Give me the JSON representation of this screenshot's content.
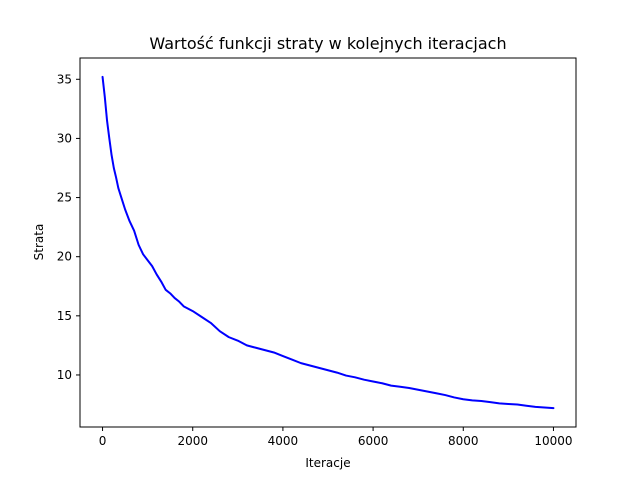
{
  "chart_data": {
    "type": "line",
    "title": "Wartość funkcji straty w kolejnych iteracjach",
    "xlabel": "Iteracje",
    "ylabel": "Strata",
    "xlim": [
      -500,
      10500
    ],
    "ylim": [
      5.6,
      36.8
    ],
    "xticks": [
      0,
      2000,
      4000,
      6000,
      8000,
      10000
    ],
    "yticks": [
      10,
      15,
      20,
      25,
      30,
      35
    ],
    "grid": false,
    "legend": "none",
    "series": [
      {
        "color": "#0000ff",
        "x": [
          0,
          50,
          100,
          150,
          200,
          250,
          300,
          350,
          400,
          450,
          500,
          600,
          700,
          800,
          900,
          1000,
          1100,
          1200,
          1300,
          1400,
          1500,
          1600,
          1700,
          1800,
          1900,
          2000,
          2200,
          2400,
          2600,
          2800,
          3000,
          3200,
          3400,
          3600,
          3800,
          4000,
          4200,
          4400,
          4600,
          4800,
          5000,
          5200,
          5400,
          5600,
          5800,
          6000,
          6200,
          6400,
          6600,
          6800,
          7000,
          7200,
          7400,
          7600,
          7800,
          8000,
          8200,
          8400,
          8600,
          8800,
          9000,
          9200,
          9400,
          9600,
          9800,
          10000
        ],
        "values": [
          35.2,
          33.5,
          31.5,
          30.0,
          28.6,
          27.5,
          26.7,
          25.8,
          25.2,
          24.6,
          24.0,
          23.0,
          22.2,
          21.0,
          20.2,
          19.7,
          19.2,
          18.5,
          17.9,
          17.2,
          16.9,
          16.5,
          16.2,
          15.8,
          15.6,
          15.4,
          14.9,
          14.4,
          13.7,
          13.2,
          12.9,
          12.5,
          12.3,
          12.1,
          11.9,
          11.6,
          11.3,
          11.0,
          10.8,
          10.6,
          10.4,
          10.2,
          9.95,
          9.8,
          9.6,
          9.45,
          9.3,
          9.1,
          9.0,
          8.9,
          8.75,
          8.6,
          8.45,
          8.3,
          8.1,
          7.95,
          7.85,
          7.8,
          7.7,
          7.6,
          7.55,
          7.5,
          7.4,
          7.3,
          7.25,
          7.2
        ]
      }
    ]
  }
}
